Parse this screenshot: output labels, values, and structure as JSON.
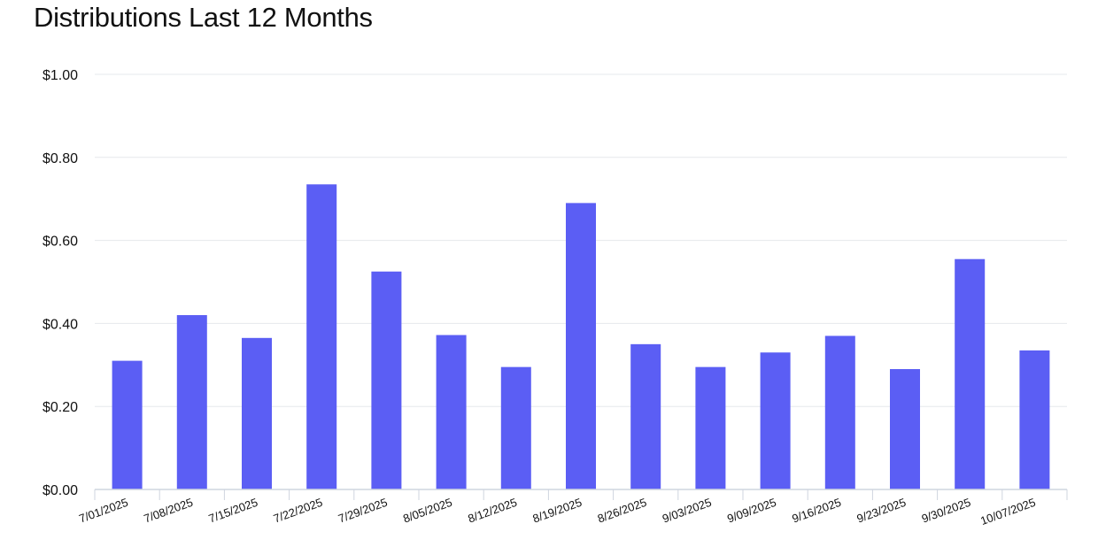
{
  "chart_data": {
    "type": "bar",
    "title": "Distributions Last 12 Months",
    "xlabel": "",
    "ylabel": "",
    "categories": [
      "7/01/2025",
      "7/08/2025",
      "7/15/2025",
      "7/22/2025",
      "7/29/2025",
      "8/05/2025",
      "8/12/2025",
      "8/19/2025",
      "8/26/2025",
      "9/03/2025",
      "9/09/2025",
      "9/16/2025",
      "9/23/2025",
      "9/30/2025",
      "10/07/2025"
    ],
    "values": [
      0.31,
      0.42,
      0.365,
      0.735,
      0.525,
      0.372,
      0.295,
      0.69,
      0.35,
      0.295,
      0.33,
      0.37,
      0.29,
      0.555,
      0.335
    ],
    "ylim": [
      0,
      1
    ],
    "yticks": [
      0,
      0.2,
      0.4,
      0.6,
      0.8,
      1.0
    ],
    "ytick_labels": [
      "$0.00",
      "$0.20",
      "$0.40",
      "$0.60",
      "$0.80",
      "$1.00"
    ],
    "grid": true,
    "legend": "none",
    "bar_color": "#5b5ef4",
    "grid_color": "#e6e8ec",
    "axis_color": "#cfd5df"
  }
}
